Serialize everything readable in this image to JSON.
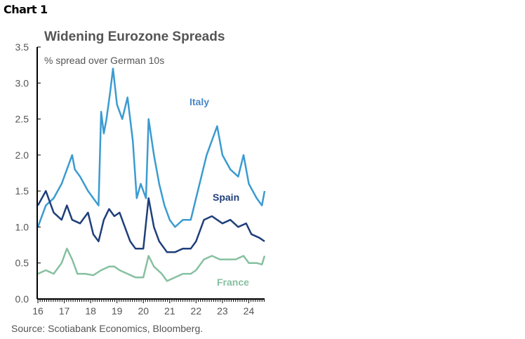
{
  "header": {
    "chart_label": "Chart 1"
  },
  "chart_data": {
    "type": "line",
    "title": "Widening Eurozone Spreads",
    "subtitle": "% spread over German 10s",
    "xlabel": "",
    "ylabel": "",
    "source": "Source: Scotiabank Economics, Bloomberg.",
    "ylim": [
      0,
      3.5
    ],
    "xlim": [
      2016,
      2024.6
    ],
    "yticks": [
      "0.0",
      "0.5",
      "1.0",
      "1.5",
      "2.0",
      "2.5",
      "3.0",
      "3.5"
    ],
    "xticks": [
      "16",
      "17",
      "18",
      "19",
      "20",
      "21",
      "22",
      "23",
      "24"
    ],
    "grid": false,
    "series": [
      {
        "name": "Italy",
        "color": "#3b9bd0",
        "label_color": "#4a88c7",
        "x": [
          2016.0,
          2016.3,
          2016.6,
          2016.9,
          2017.1,
          2017.3,
          2017.4,
          2017.6,
          2017.9,
          2018.1,
          2018.3,
          2018.4,
          2018.5,
          2018.6,
          2018.75,
          2018.85,
          2019.0,
          2019.2,
          2019.4,
          2019.6,
          2019.75,
          2019.9,
          2020.1,
          2020.2,
          2020.4,
          2020.6,
          2020.8,
          2021.0,
          2021.2,
          2021.5,
          2021.8,
          2022.0,
          2022.2,
          2022.4,
          2022.6,
          2022.8,
          2023.0,
          2023.3,
          2023.6,
          2023.8,
          2024.0,
          2024.3,
          2024.5,
          2024.6
        ],
        "y": [
          1.0,
          1.3,
          1.4,
          1.6,
          1.8,
          2.0,
          1.8,
          1.7,
          1.5,
          1.4,
          1.3,
          2.6,
          2.3,
          2.5,
          2.9,
          3.2,
          2.7,
          2.5,
          2.8,
          2.2,
          1.4,
          1.6,
          1.4,
          2.5,
          2.0,
          1.6,
          1.3,
          1.1,
          1.0,
          1.1,
          1.1,
          1.4,
          1.7,
          2.0,
          2.2,
          2.4,
          2.0,
          1.8,
          1.7,
          2.0,
          1.6,
          1.4,
          1.3,
          1.5
        ]
      },
      {
        "name": "Spain",
        "color": "#1f3f7a",
        "label_color": "#1f3f7a",
        "x": [
          2016.0,
          2016.3,
          2016.6,
          2016.9,
          2017.1,
          2017.3,
          2017.6,
          2017.9,
          2018.1,
          2018.3,
          2018.5,
          2018.7,
          2018.9,
          2019.1,
          2019.3,
          2019.5,
          2019.7,
          2020.0,
          2020.2,
          2020.4,
          2020.6,
          2020.9,
          2021.2,
          2021.5,
          2021.8,
          2022.0,
          2022.3,
          2022.6,
          2022.8,
          2023.0,
          2023.3,
          2023.6,
          2023.9,
          2024.1,
          2024.4,
          2024.6
        ],
        "y": [
          1.3,
          1.5,
          1.2,
          1.1,
          1.3,
          1.1,
          1.05,
          1.2,
          0.9,
          0.8,
          1.1,
          1.25,
          1.15,
          1.2,
          1.0,
          0.8,
          0.7,
          0.7,
          1.4,
          1.0,
          0.8,
          0.65,
          0.65,
          0.7,
          0.7,
          0.8,
          1.1,
          1.15,
          1.1,
          1.05,
          1.1,
          1.0,
          1.05,
          0.9,
          0.85,
          0.8
        ]
      },
      {
        "name": "France",
        "color": "#86c0a0",
        "label_color": "#86c0a0",
        "x": [
          2016.0,
          2016.3,
          2016.6,
          2016.9,
          2017.1,
          2017.3,
          2017.5,
          2017.8,
          2018.1,
          2018.4,
          2018.7,
          2018.9,
          2019.1,
          2019.4,
          2019.7,
          2020.0,
          2020.2,
          2020.4,
          2020.7,
          2020.9,
          2021.2,
          2021.5,
          2021.8,
          2022.0,
          2022.3,
          2022.6,
          2022.9,
          2023.2,
          2023.5,
          2023.8,
          2024.0,
          2024.3,
          2024.5,
          2024.6
        ],
        "y": [
          0.35,
          0.4,
          0.35,
          0.5,
          0.7,
          0.55,
          0.35,
          0.35,
          0.33,
          0.4,
          0.45,
          0.45,
          0.4,
          0.35,
          0.3,
          0.3,
          0.6,
          0.45,
          0.35,
          0.25,
          0.3,
          0.35,
          0.35,
          0.4,
          0.55,
          0.6,
          0.55,
          0.55,
          0.55,
          0.6,
          0.5,
          0.5,
          0.48,
          0.6
        ]
      }
    ]
  }
}
